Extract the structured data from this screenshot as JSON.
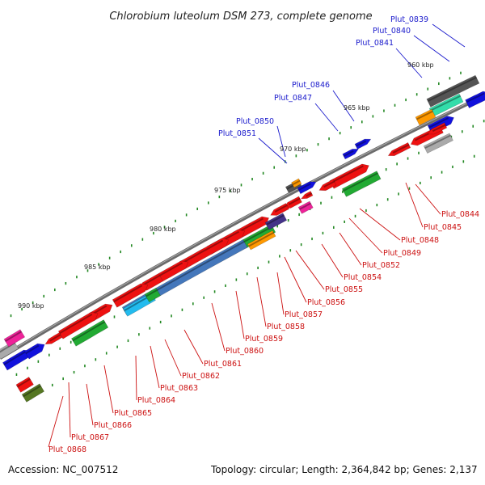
{
  "title": "Chlorobium luteolum DSM 273, complete genome",
  "footer": {
    "accession": "Accession: NC_007512",
    "topology": "Topology: circular; Length: 2,364,842 bp; Genes: 2,137"
  },
  "ticks": [
    "960 kbp",
    "965 kbp",
    "970 kbp",
    "975 kbp",
    "980 kbp",
    "985 kbp",
    "990 kbp"
  ],
  "top_labels": [
    "Plut_0839",
    "Plut_0840",
    "Plut_0841",
    "Plut_0846",
    "Plut_0847",
    "Plut_0850",
    "Plut_0851"
  ],
  "bottom_labels": [
    "Plut_0844",
    "Plut_0845",
    "Plut_0848",
    "Plut_0849",
    "Plut_0852",
    "Plut_0854",
    "Plut_0855",
    "Plut_0856",
    "Plut_0857",
    "Plut_0858",
    "Plut_0859",
    "Plut_0860",
    "Plut_0861",
    "Plut_0862",
    "Plut_0863",
    "Plut_0864",
    "Plut_0865",
    "Plut_0866",
    "Plut_0867",
    "Plut_0868"
  ],
  "colors": {
    "top_label": "#1a1acc",
    "bottom_label": "#cc1111",
    "gene_red": "#ee1111",
    "gene_blue": "#1111dd",
    "gene_green": "#22aa33",
    "gene_teal": "#33ddaa",
    "gene_orange": "#ff9900",
    "gene_pink": "#ee2299",
    "gene_gray": "#aaaaaa",
    "gene_dark": "#555555",
    "gene_steel": "#4477bb",
    "gene_cyan": "#22bbee",
    "gene_olive": "#557722",
    "gene_purple": "#443388",
    "backbone": "#666666",
    "tick_mark": "#228822"
  }
}
